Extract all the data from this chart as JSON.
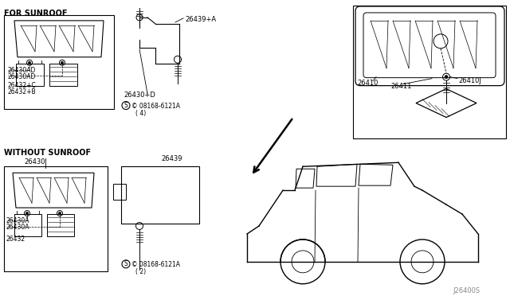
{
  "bg_color": "#ffffff",
  "border_color": "#000000",
  "line_color": "#000000",
  "text_color": "#000000",
  "fig_width": 6.4,
  "fig_height": 3.72,
  "dpi": 100,
  "watermark": "J26400S",
  "labels": {
    "for_sunroof": "FOR SUNROOF",
    "without_sunroof": "WITHOUT SUNROOF",
    "part_26430": "26430",
    "part_26430AD_1": "26430AD",
    "part_26430AD_2": "26430AD",
    "part_26432C": "26432+C",
    "part_26432B": "26432+B",
    "part_26430D": "26430+D",
    "part_26439A": "26439+A",
    "part_screw1": "© 08168-6121A",
    "part_screw1_qty": "( 4)",
    "part_26439": "26439",
    "part_screw2": "© 08168-6121A",
    "part_screw2_qty": "( 2)",
    "part_26430A_1": "26430A",
    "part_26430A_2": "26430A",
    "part_26432": "26432",
    "part_26410": "26410",
    "part_26411": "26411",
    "part_26410J": "26410J"
  }
}
